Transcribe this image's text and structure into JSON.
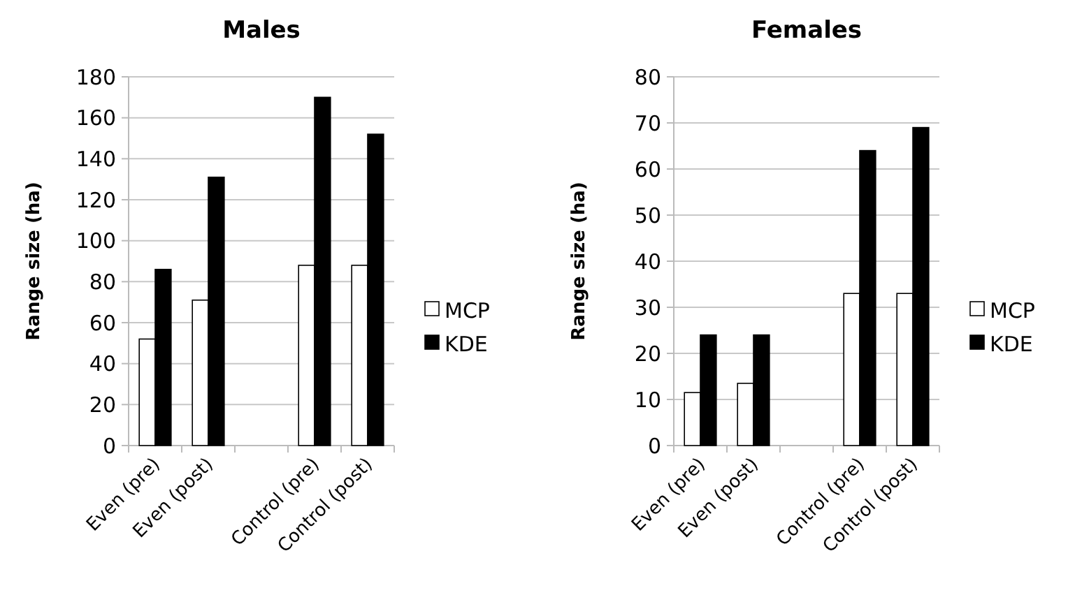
{
  "chart_data": [
    {
      "type": "bar",
      "title": "Males",
      "ylabel": "Range size (ha)",
      "categories": [
        "Even (pre)",
        "Even (post)",
        null,
        "Control (pre)",
        "Control (post)"
      ],
      "series": [
        {
          "name": "MCP",
          "color": "#ffffff",
          "values": [
            52,
            71,
            null,
            88,
            88
          ]
        },
        {
          "name": "KDE",
          "color": "#000000",
          "values": [
            86,
            131,
            null,
            170,
            152
          ]
        }
      ],
      "ylim": [
        0,
        180
      ],
      "yticks": [
        0,
        20,
        40,
        60,
        80,
        100,
        120,
        140,
        160,
        180
      ],
      "grid": "y",
      "legend": "right"
    },
    {
      "type": "bar",
      "title": "Females",
      "ylabel": "Range size (ha)",
      "categories": [
        "Even (pre)",
        "Even (post)",
        null,
        "Control (pre)",
        "Control (post)"
      ],
      "series": [
        {
          "name": "MCP",
          "color": "#ffffff",
          "values": [
            11.5,
            13.5,
            null,
            33,
            33
          ]
        },
        {
          "name": "KDE",
          "color": "#000000",
          "values": [
            24,
            24,
            null,
            64,
            69
          ]
        }
      ],
      "ylim": [
        0,
        80
      ],
      "yticks": [
        0,
        10,
        20,
        30,
        40,
        50,
        60,
        70,
        80
      ],
      "grid": "y",
      "legend": "right"
    }
  ]
}
